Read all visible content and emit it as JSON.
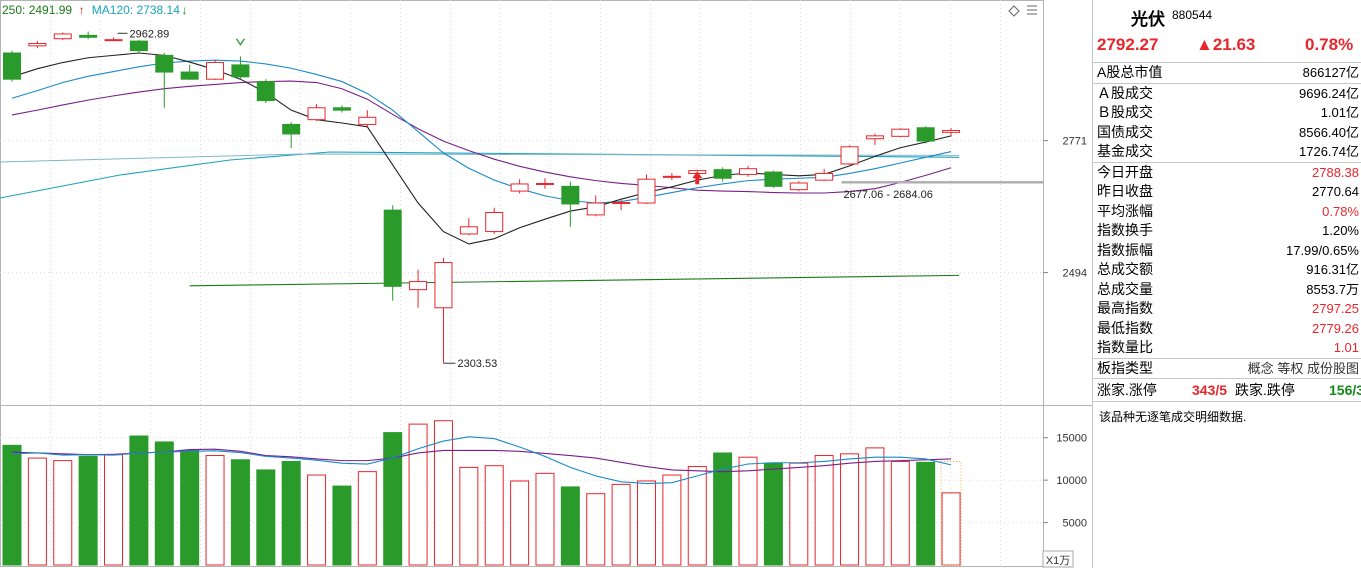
{
  "chart_data": {
    "type": "candlestick",
    "ma_legend": [
      {
        "label": "250: 2491.99",
        "color": "#1a7a1a",
        "arrow": "↑",
        "arrow_color": "#e8262c"
      },
      {
        "label": "MA120: 2738.14",
        "color": "#1aa3b8",
        "arrow": "↓",
        "arrow_color": "#13891a"
      }
    ],
    "ylim": [
      2220,
      3060
    ],
    "y_ticks": [
      2771,
      2494
    ],
    "candles": [
      {
        "o": 2955,
        "c": 2900,
        "h": 2960,
        "l": 2895
      },
      {
        "o": 2970,
        "c": 2975,
        "h": 2980,
        "l": 2965
      },
      {
        "o": 2985,
        "c": 2995,
        "h": 2998,
        "l": 2982
      },
      {
        "o": 2992,
        "c": 2988,
        "h": 3000,
        "l": 2984
      },
      {
        "o": 2982,
        "c": 2983,
        "h": 2988,
        "l": 2980
      },
      {
        "o": 2980,
        "c": 2960,
        "h": 2982,
        "l": 2955
      },
      {
        "o": 2950,
        "c": 2915,
        "h": 2955,
        "l": 2840
      },
      {
        "o": 2915,
        "c": 2900,
        "h": 2930,
        "l": 2898
      },
      {
        "o": 2900,
        "c": 2935,
        "h": 2940,
        "l": 2898
      },
      {
        "o": 2930,
        "c": 2905,
        "h": 2948,
        "l": 2900
      },
      {
        "o": 2895,
        "c": 2855,
        "h": 2900,
        "l": 2850
      },
      {
        "o": 2805,
        "c": 2785,
        "h": 2810,
        "l": 2755
      },
      {
        "o": 2815,
        "c": 2840,
        "h": 2848,
        "l": 2812
      },
      {
        "o": 2840,
        "c": 2835,
        "h": 2845,
        "l": 2830
      },
      {
        "o": 2805,
        "c": 2820,
        "h": 2835,
        "l": 2800
      },
      {
        "o": 2625,
        "c": 2465,
        "h": 2635,
        "l": 2435
      },
      {
        "o": 2458,
        "c": 2475,
        "h": 2500,
        "l": 2420
      },
      {
        "o": 2420,
        "c": 2515,
        "h": 2525,
        "l": 2303.53
      },
      {
        "o": 2575,
        "c": 2590,
        "h": 2608,
        "l": 2572
      },
      {
        "o": 2580,
        "c": 2620,
        "h": 2630,
        "l": 2575
      },
      {
        "o": 2665,
        "c": 2680,
        "h": 2690,
        "l": 2660
      },
      {
        "o": 2680,
        "c": 2681,
        "h": 2692,
        "l": 2670
      },
      {
        "o": 2675,
        "c": 2638,
        "h": 2685,
        "l": 2590
      },
      {
        "o": 2615,
        "c": 2640,
        "h": 2656,
        "l": 2612
      },
      {
        "o": 2640,
        "c": 2641,
        "h": 2648,
        "l": 2625
      },
      {
        "o": 2640,
        "c": 2690,
        "h": 2700,
        "l": 2638
      },
      {
        "o": 2695,
        "c": 2696,
        "h": 2703,
        "l": 2688
      },
      {
        "o": 2702,
        "c": 2708,
        "h": 2710,
        "l": 2697
      },
      {
        "o": 2710,
        "c": 2692,
        "h": 2715,
        "l": 2685
      },
      {
        "o": 2700,
        "c": 2712,
        "h": 2718,
        "l": 2695
      },
      {
        "o": 2705,
        "c": 2675,
        "h": 2708,
        "l": 2672
      },
      {
        "o": 2668,
        "c": 2682,
        "h": 2686,
        "l": 2665
      },
      {
        "o": 2688,
        "c": 2702,
        "h": 2712,
        "l": 2686
      },
      {
        "o": 2722,
        "c": 2758,
        "h": 2761,
        "l": 2720
      },
      {
        "o": 2775,
        "c": 2781,
        "h": 2786,
        "l": 2762
      },
      {
        "o": 2780,
        "c": 2795,
        "h": 2797,
        "l": 2778
      },
      {
        "o": 2798,
        "c": 2770,
        "h": 2801,
        "l": 2765
      },
      {
        "o": 2788.38,
        "c": 2792.27,
        "h": 2797.25,
        "l": 2779.26
      }
    ],
    "ma_short": [
      2905,
      2922,
      2935,
      2945,
      2950,
      2955,
      2950,
      2936,
      2920,
      2900,
      2872,
      2835,
      2815,
      2808,
      2800,
      2720,
      2640,
      2580,
      2554,
      2565,
      2588,
      2606,
      2623,
      2632,
      2648,
      2662,
      2674,
      2688,
      2698,
      2703,
      2700,
      2697,
      2700,
      2718,
      2738,
      2756,
      2768,
      2781
    ],
    "ma_mid": [
      2860,
      2876,
      2893,
      2906,
      2916,
      2926,
      2934,
      2938,
      2940,
      2938,
      2932,
      2923,
      2910,
      2895,
      2870,
      2835,
      2790,
      2745,
      2713,
      2688,
      2670,
      2655,
      2645,
      2640,
      2643,
      2652,
      2662,
      2672,
      2680,
      2687,
      2690,
      2692,
      2694,
      2702,
      2712,
      2724,
      2736,
      2748
    ],
    "ma_long": [
      2825,
      2835,
      2846,
      2856,
      2865,
      2873,
      2880,
      2885,
      2889,
      2893,
      2895,
      2896,
      2893,
      2880,
      2858,
      2826,
      2796,
      2770,
      2750,
      2732,
      2717,
      2705,
      2695,
      2687,
      2681,
      2677,
      2672,
      2667,
      2665,
      2664,
      2662,
      2661,
      2661,
      2664,
      2670,
      2683,
      2698,
      2714
    ],
    "ma120_line": [
      [
        0,
        2735
      ],
      [
        37,
        2744
      ]
    ],
    "ma250_line": [
      [
        7,
        2466
      ],
      [
        37,
        2488
      ]
    ],
    "ma120_past": [
      [
        0,
        2680
      ],
      [
        13,
        2738
      ]
    ],
    "high_label": "2962.89",
    "high_index": 4,
    "low_label": "2303.53",
    "low_index": 17,
    "range_label": "2677.06 - 2684.06",
    "range_value": 2684,
    "range_start_index": 33,
    "volume": {
      "ylim": [
        0,
        18500
      ],
      "ticks": [
        15000,
        10000,
        5000
      ],
      "unit": "X1万",
      "values": [
        14100,
        12600,
        12300,
        12800,
        13000,
        15200,
        14500,
        13500,
        12900,
        12400,
        11200,
        12200,
        10600,
        9300,
        11000,
        15600,
        16600,
        17000,
        11500,
        11700,
        9900,
        10800,
        9200,
        8400,
        9500,
        9900,
        10600,
        11600,
        13200,
        12700,
        12000,
        12000,
        12900,
        13100,
        13800,
        12200,
        12100,
        8500
      ],
      "ma_a": [
        13100,
        13200,
        12950,
        13000,
        12950,
        13200,
        13300,
        13400,
        13450,
        13250,
        12800,
        12600,
        12350,
        12000,
        11900,
        12600,
        13700,
        14600,
        15100,
        14900,
        13900,
        12800,
        11500,
        10500,
        9800,
        9600,
        9700,
        10500,
        11300,
        11900,
        12050,
        12050,
        12200,
        12500,
        12700,
        12700,
        12500,
        11800
      ],
      "ma_b": [
        13300,
        13200,
        13100,
        13000,
        13050,
        13200,
        13300,
        13600,
        13650,
        13400,
        12900,
        12750,
        12500,
        12300,
        12300,
        12600,
        13200,
        13500,
        13500,
        13500,
        13400,
        13150,
        12900,
        12600,
        12100,
        11600,
        11200,
        11100,
        11000,
        11100,
        11300,
        11500,
        11700,
        12000,
        12200,
        12300,
        12400,
        12500
      ]
    }
  },
  "panel": {
    "name": "光伏",
    "code": "880544",
    "price": "2792.27",
    "change": "▲21.63",
    "change_pct": "0.78%",
    "rows_a": [
      {
        "label": "A股总市值",
        "value": "866127亿",
        "color": ""
      }
    ],
    "rows_b": [
      {
        "label": "Ａ股成交",
        "value": "9696.24亿",
        "color": ""
      },
      {
        "label": "Ｂ股成交",
        "value": "1.01亿",
        "color": ""
      },
      {
        "label": "国债成交",
        "value": "8566.40亿",
        "color": ""
      },
      {
        "label": "基金成交",
        "value": "1726.74亿",
        "color": ""
      }
    ],
    "rows_c": [
      {
        "label": "今日开盘",
        "value": "2788.38",
        "color": "red"
      },
      {
        "label": "昨日收盘",
        "value": "2770.64",
        "color": ""
      },
      {
        "label": "平均涨幅",
        "value": "0.78%",
        "color": "red"
      },
      {
        "label": "指数换手",
        "value": "1.20%",
        "color": ""
      },
      {
        "label": "指数振幅",
        "value": "17.99/0.65%",
        "color": ""
      },
      {
        "label": "总成交额",
        "value": "916.31亿",
        "color": ""
      },
      {
        "label": "总成交量",
        "value": "8553.7万",
        "color": ""
      },
      {
        "label": "最高指数",
        "value": "2797.25",
        "color": "red"
      },
      {
        "label": "最低指数",
        "value": "2779.26",
        "color": "red"
      },
      {
        "label": "指数量比",
        "value": "1.01",
        "color": "red"
      }
    ],
    "board_type_label": "板指类型",
    "board_type_value": "概念 等权 成份股图",
    "up_label": "涨家.涨停",
    "up_value": "343/5",
    "down_label": "跌家.跌停",
    "down_value": "156/3",
    "note": "该品种无逐笔成交明细数据."
  }
}
